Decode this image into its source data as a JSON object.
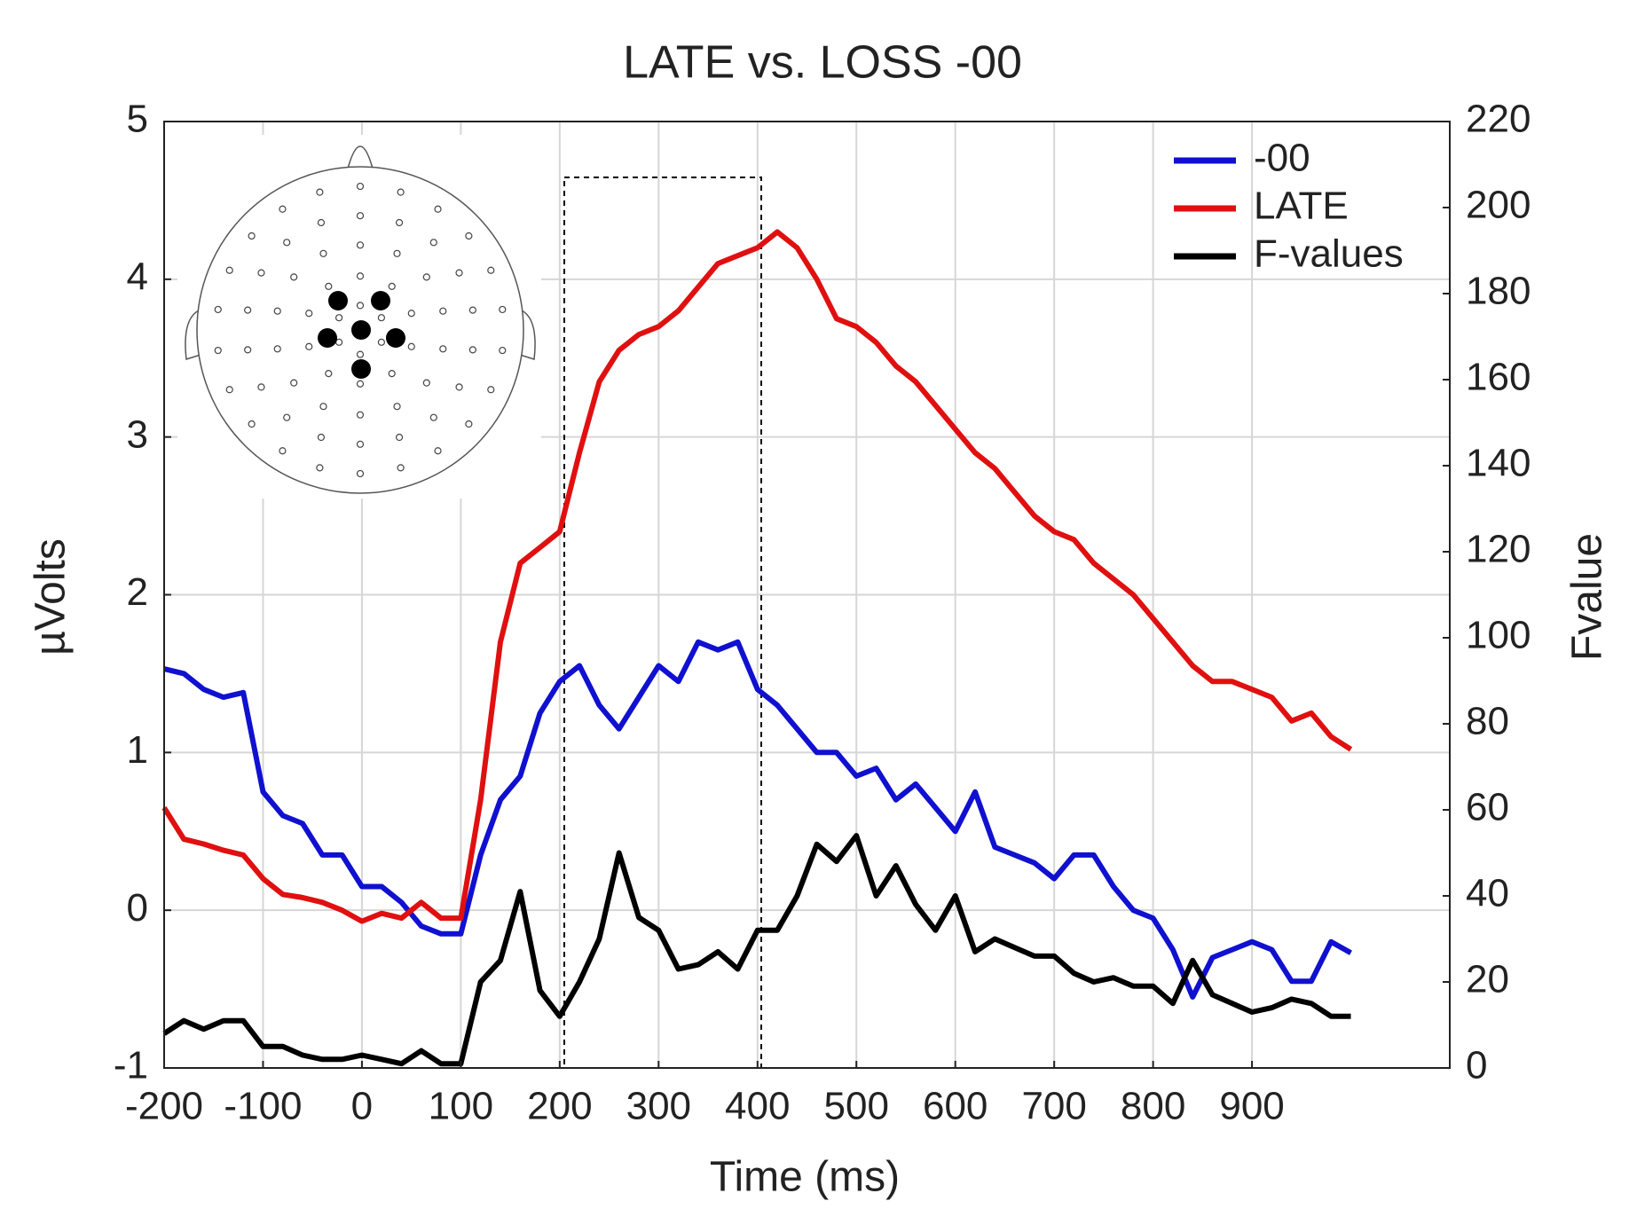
{
  "chart_data": {
    "type": "line",
    "title": "LATE vs. LOSS -00",
    "x_label": "Time (ms)",
    "y_label": "µVolts",
    "y2_label": "Fvalue",
    "x": [
      -200,
      -180,
      -160,
      -140,
      -120,
      -100,
      -80,
      -60,
      -40,
      -20,
      0,
      20,
      40,
      60,
      80,
      100,
      120,
      140,
      160,
      180,
      200,
      220,
      240,
      260,
      280,
      300,
      320,
      340,
      360,
      380,
      400,
      420,
      440,
      460,
      480,
      500,
      520,
      540,
      560,
      580,
      600,
      620,
      640,
      660,
      680,
      700,
      720,
      740,
      760,
      780,
      800,
      820,
      840,
      860,
      880,
      900,
      920,
      940,
      960,
      980,
      1000
    ],
    "series": [
      {
        "name": "-00",
        "color": "#1010d0",
        "values": [
          1.53,
          1.5,
          1.4,
          1.35,
          1.38,
          0.75,
          0.6,
          0.55,
          0.35,
          0.35,
          0.15,
          0.15,
          0.05,
          -0.1,
          -0.15,
          -0.15,
          0.35,
          0.7,
          0.85,
          1.25,
          1.45,
          1.55,
          1.3,
          1.15,
          1.35,
          1.55,
          1.45,
          1.7,
          1.65,
          1.7,
          1.4,
          1.3,
          1.15,
          1.0,
          1.0,
          0.85,
          0.9,
          0.7,
          0.8,
          0.65,
          0.5,
          0.75,
          0.4,
          0.35,
          0.3,
          0.2,
          0.35,
          0.35,
          0.15,
          0.0,
          -0.05,
          -0.25,
          -0.55,
          -0.3,
          -0.25,
          -0.2,
          -0.25,
          -0.45,
          -0.45,
          -0.2,
          -0.27
        ]
      },
      {
        "name": "LATE",
        "color": "#e01010",
        "values": [
          0.65,
          0.45,
          0.42,
          0.38,
          0.35,
          0.2,
          0.1,
          0.08,
          0.05,
          0.0,
          -0.07,
          -0.02,
          -0.05,
          0.05,
          -0.05,
          -0.05,
          0.7,
          1.7,
          2.2,
          2.3,
          2.4,
          2.9,
          3.35,
          3.55,
          3.65,
          3.7,
          3.8,
          3.95,
          4.1,
          4.15,
          4.2,
          4.3,
          4.2,
          4.0,
          3.75,
          3.7,
          3.6,
          3.45,
          3.35,
          3.2,
          3.05,
          2.9,
          2.8,
          2.65,
          2.5,
          2.4,
          2.35,
          2.2,
          2.1,
          2.0,
          1.85,
          1.7,
          1.55,
          1.45,
          1.45,
          1.4,
          1.35,
          1.2,
          1.25,
          1.1,
          1.02
        ]
      },
      {
        "name": "F-values",
        "color": "#000000",
        "axis": "y2",
        "values": [
          8,
          11,
          9,
          11,
          11,
          5,
          5,
          3,
          2,
          2,
          3,
          2,
          1,
          4,
          1,
          1,
          20,
          25,
          41,
          18,
          12,
          20,
          30,
          50,
          35,
          32,
          23,
          24,
          27,
          23,
          32,
          32,
          40,
          52,
          48,
          54,
          40,
          47,
          38,
          32,
          40,
          27,
          30,
          28,
          26,
          26,
          22,
          20,
          21,
          19,
          19,
          15,
          25,
          17,
          15,
          13,
          14,
          16,
          15,
          12,
          12
        ]
      }
    ],
    "xlim": [
      -200,
      1100
    ],
    "xticks": [
      -200,
      -100,
      0,
      100,
      200,
      300,
      400,
      500,
      600,
      700,
      800,
      900
    ],
    "ylim": [
      -1,
      5
    ],
    "yticks": [
      -1,
      0,
      1,
      2,
      3,
      4,
      5
    ],
    "y2lim": [
      0,
      220
    ],
    "y2ticks": [
      0,
      20,
      40,
      60,
      80,
      100,
      120,
      140,
      160,
      180,
      200,
      220
    ],
    "grid": true,
    "legend": "upper right"
  }
}
